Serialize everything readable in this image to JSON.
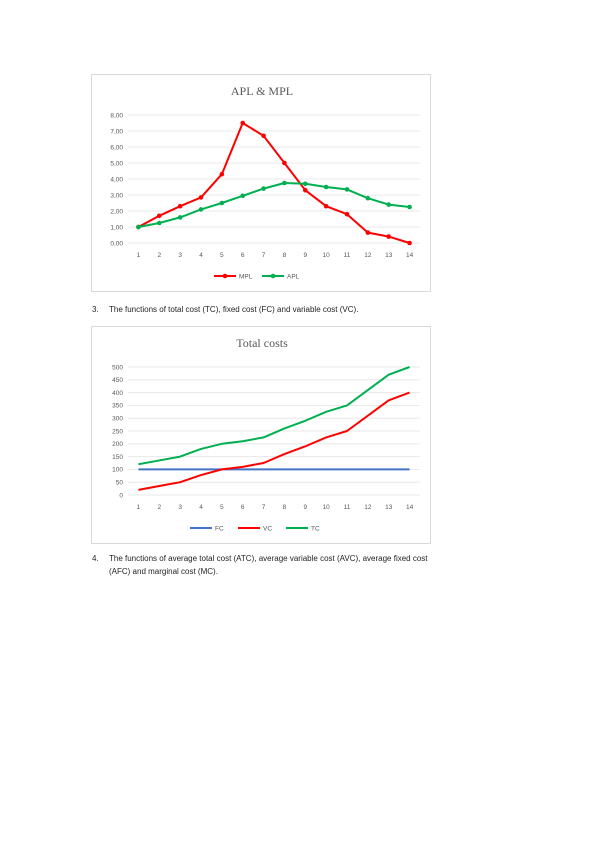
{
  "charts": [
    {
      "type": "line",
      "title": "APL & MPL",
      "x": [
        "1",
        "2",
        "3",
        "4",
        "5",
        "6",
        "7",
        "8",
        "9",
        "10",
        "11",
        "12",
        "13",
        "14"
      ],
      "ylim": [
        0,
        8
      ],
      "yticks": [
        "0,00",
        "1,00",
        "2,00",
        "3,00",
        "4,00",
        "5,00",
        "6,00",
        "7,00",
        "8,00"
      ],
      "grid": true,
      "legend_position": "bottom",
      "series": [
        {
          "name": "MPL",
          "color": "#ff0000",
          "values": [
            1.0,
            1.7,
            2.3,
            2.85,
            4.3,
            7.5,
            6.7,
            5.0,
            3.3,
            2.3,
            1.8,
            0.65,
            0.4,
            0.0
          ]
        },
        {
          "name": "APL",
          "color": "#00b050",
          "values": [
            1.0,
            1.25,
            1.6,
            2.1,
            2.5,
            2.95,
            3.4,
            3.75,
            3.7,
            3.5,
            3.35,
            2.8,
            2.4,
            2.25
          ]
        }
      ]
    },
    {
      "type": "line",
      "title": "Total costs",
      "x": [
        "1",
        "2",
        "3",
        "4",
        "5",
        "6",
        "7",
        "8",
        "9",
        "10",
        "11",
        "12",
        "13",
        "14"
      ],
      "ylim": [
        0,
        500
      ],
      "yticks": [
        "0",
        "50",
        "100",
        "150",
        "200",
        "250",
        "300",
        "350",
        "400",
        "450",
        "500"
      ],
      "grid": true,
      "legend_position": "bottom",
      "series": [
        {
          "name": "FC",
          "color": "#4472c4",
          "values": [
            100,
            100,
            100,
            100,
            100,
            100,
            100,
            100,
            100,
            100,
            100,
            100,
            100,
            100
          ]
        },
        {
          "name": "VC",
          "color": "#ff0000",
          "values": [
            20,
            35,
            50,
            78,
            100,
            110,
            125,
            160,
            190,
            225,
            250,
            310,
            370,
            400
          ]
        },
        {
          "name": "TC",
          "color": "#00b050",
          "values": [
            120,
            135,
            150,
            180,
            200,
            210,
            225,
            260,
            290,
            325,
            350,
            410,
            470,
            500
          ]
        }
      ]
    }
  ],
  "captions": {
    "c3_num": "3.",
    "c3_text": "The functions of total cost (TC), fixed cost (FC) and variable cost (VC).",
    "c4_num": "4.",
    "c4_line1": "The functions of average total cost (ATC), average variable cost (AVC), average fixed cost",
    "c4_line2": "(AFC) and marginal cost (MC)."
  }
}
